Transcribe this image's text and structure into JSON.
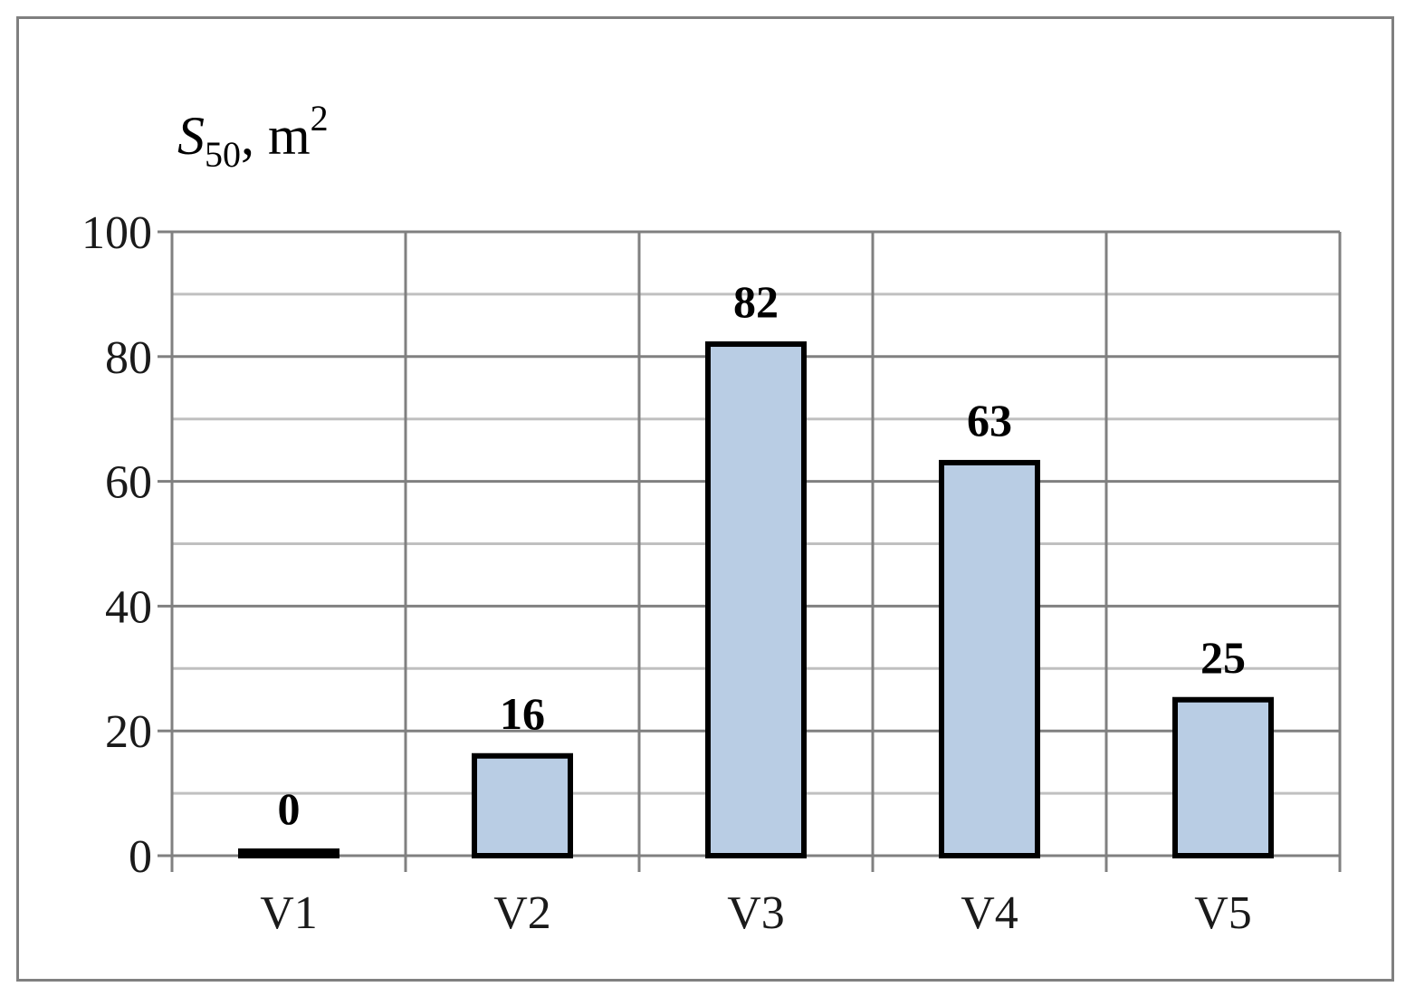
{
  "chart_data": {
    "type": "bar",
    "ylabel": {
      "symbol": "S",
      "subscript": "50",
      "unit": "m",
      "unit_power": "2"
    },
    "xlabel": "",
    "categories": [
      "V1",
      "V2",
      "V3",
      "V4",
      "V5"
    ],
    "values": [
      0,
      16,
      82,
      63,
      25
    ],
    "data_labels": [
      "0",
      "16",
      "82",
      "63",
      "25"
    ],
    "ylim": [
      0,
      100
    ],
    "yticks": [
      0,
      20,
      40,
      60,
      80,
      100
    ],
    "ytick_labels": [
      "0",
      "20",
      "40",
      "60",
      "80",
      "100"
    ],
    "minor_gridlines_every": 10,
    "grid": true,
    "legend": false,
    "colors": {
      "bar_fill": "#b9cde4",
      "bar_outline": "#000000",
      "major_grid": "#808080",
      "minor_grid": "#c0c0c0",
      "frame": "#808080"
    }
  }
}
